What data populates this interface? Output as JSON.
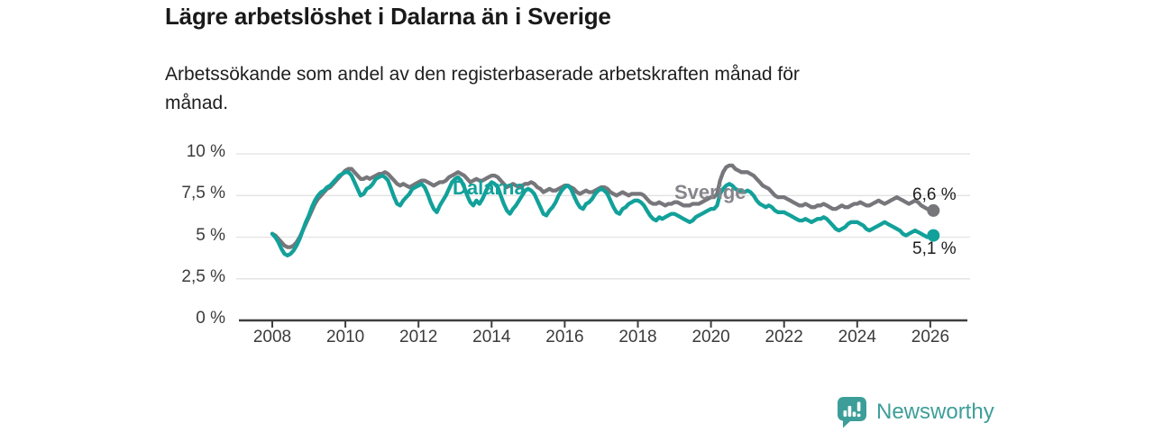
{
  "chart_data": {
    "type": "line",
    "title": "Lägre arbetslöshet i Dalarna än i Sverige",
    "subtitle_lines": [
      "Arbetssökande som andel av den registerbaserade arbetskraften månad för",
      "månad."
    ],
    "grid": true,
    "legend": "inline-labels",
    "x": {
      "start_year": 2008,
      "points_per_year": 12,
      "end_period": "2026-02",
      "ticks": [
        2008,
        2010,
        2012,
        2014,
        2016,
        2018,
        2020,
        2022,
        2024,
        2026
      ],
      "tick_labels": [
        "2008",
        "2010",
        "2012",
        "2014",
        "2016",
        "2018",
        "2020",
        "2022",
        "2024",
        "2026"
      ]
    },
    "y": {
      "ylim": [
        0,
        10
      ],
      "unit": "%",
      "tick_values": [
        0,
        2.5,
        5,
        7.5,
        10
      ],
      "tick_labels": [
        "0 %",
        "2,5 %",
        "5 %",
        "7,5 %",
        "10 %"
      ]
    },
    "series": [
      {
        "name": "Sverige",
        "color": "#76767B",
        "label_color": "#85858B",
        "end_label": "6,6 %",
        "end_value": 6.6,
        "values": [
          5.2,
          5.1,
          4.9,
          4.7,
          4.5,
          4.4,
          4.4,
          4.5,
          4.7,
          5.0,
          5.4,
          5.8,
          6.2,
          6.6,
          7.0,
          7.3,
          7.5,
          7.7,
          7.9,
          8.0,
          8.2,
          8.4,
          8.6,
          8.8,
          9.0,
          9.1,
          9.1,
          8.9,
          8.7,
          8.5,
          8.5,
          8.6,
          8.5,
          8.6,
          8.7,
          8.8,
          8.8,
          8.9,
          8.8,
          8.6,
          8.4,
          8.2,
          8.1,
          8.2,
          8.1,
          8.0,
          8.1,
          8.2,
          8.3,
          8.4,
          8.4,
          8.3,
          8.2,
          8.1,
          8.2,
          8.3,
          8.3,
          8.4,
          8.6,
          8.7,
          8.8,
          8.9,
          8.8,
          8.7,
          8.5,
          8.3,
          8.4,
          8.5,
          8.4,
          8.4,
          8.5,
          8.6,
          8.7,
          8.7,
          8.6,
          8.4,
          8.2,
          8.0,
          8.1,
          8.2,
          8.1,
          8.0,
          8.1,
          8.2,
          8.2,
          8.3,
          8.2,
          8.0,
          7.9,
          7.7,
          7.8,
          7.9,
          7.8,
          7.8,
          7.9,
          8.0,
          8.1,
          8.1,
          8.0,
          7.9,
          7.7,
          7.6,
          7.7,
          7.8,
          7.7,
          7.7,
          7.8,
          7.9,
          8.0,
          8.0,
          7.9,
          7.7,
          7.6,
          7.5,
          7.6,
          7.7,
          7.6,
          7.5,
          7.6,
          7.6,
          7.6,
          7.6,
          7.5,
          7.3,
          7.1,
          7.0,
          7.0,
          7.1,
          7.0,
          6.9,
          7.0,
          7.0,
          7.1,
          7.1,
          7.0,
          6.9,
          6.9,
          6.9,
          7.0,
          7.0,
          7.0,
          7.1,
          7.2,
          7.3,
          7.4,
          7.4,
          7.6,
          8.4,
          8.9,
          9.2,
          9.3,
          9.3,
          9.1,
          9.0,
          8.9,
          8.9,
          8.9,
          8.8,
          8.7,
          8.5,
          8.3,
          8.1,
          8.0,
          7.9,
          7.7,
          7.5,
          7.4,
          7.4,
          7.4,
          7.3,
          7.2,
          7.1,
          7.0,
          6.9,
          6.9,
          7.0,
          6.9,
          6.8,
          6.8,
          6.9,
          6.9,
          7.0,
          6.9,
          6.8,
          6.7,
          6.7,
          6.8,
          6.9,
          6.8,
          6.8,
          6.9,
          7.0,
          7.0,
          7.1,
          7.0,
          6.9,
          6.9,
          7.0,
          7.1,
          7.2,
          7.1,
          7.0,
          7.1,
          7.2,
          7.3,
          7.4,
          7.3,
          7.2,
          7.1,
          7.0,
          7.1,
          7.2,
          7.1,
          6.9,
          6.8,
          6.7,
          6.6,
          6.6
        ]
      },
      {
        "name": "Dalarna",
        "color": "#12A19A",
        "label_color": "#12A19A",
        "end_label": "5,1 %",
        "end_value": 5.1,
        "values": [
          5.2,
          5.0,
          4.7,
          4.3,
          4.0,
          3.9,
          4.0,
          4.2,
          4.5,
          4.9,
          5.4,
          5.9,
          6.3,
          6.8,
          7.2,
          7.5,
          7.7,
          7.8,
          8.0,
          8.1,
          8.3,
          8.5,
          8.7,
          8.8,
          8.9,
          8.9,
          8.7,
          8.3,
          7.9,
          7.5,
          7.6,
          7.9,
          8.0,
          8.2,
          8.5,
          8.6,
          8.7,
          8.6,
          8.4,
          7.9,
          7.4,
          7.0,
          6.9,
          7.2,
          7.4,
          7.6,
          7.9,
          8.0,
          8.1,
          8.2,
          8.0,
          7.6,
          7.1,
          6.7,
          6.5,
          6.9,
          7.2,
          7.5,
          7.9,
          8.3,
          8.5,
          8.6,
          8.4,
          8.0,
          7.5,
          7.1,
          6.9,
          7.2,
          7.0,
          7.3,
          7.7,
          8.1,
          8.3,
          8.2,
          8.0,
          7.5,
          7.0,
          6.6,
          6.4,
          6.7,
          6.9,
          7.2,
          7.5,
          7.8,
          7.9,
          7.8,
          7.6,
          7.2,
          6.8,
          6.4,
          6.3,
          6.6,
          6.8,
          7.1,
          7.5,
          7.8,
          8.0,
          8.1,
          7.9,
          7.5,
          7.1,
          6.8,
          6.7,
          7.0,
          7.1,
          7.3,
          7.6,
          7.8,
          7.9,
          7.8,
          7.6,
          7.2,
          6.8,
          6.5,
          6.4,
          6.7,
          6.8,
          7.0,
          7.1,
          7.2,
          7.2,
          7.1,
          6.9,
          6.6,
          6.3,
          6.1,
          6.0,
          6.2,
          6.1,
          6.2,
          6.3,
          6.4,
          6.4,
          6.3,
          6.2,
          6.1,
          6.0,
          5.9,
          6.0,
          6.2,
          6.3,
          6.4,
          6.5,
          6.6,
          6.7,
          6.7,
          6.9,
          7.6,
          7.9,
          8.1,
          8.2,
          8.1,
          7.9,
          7.8,
          7.7,
          7.7,
          7.8,
          7.7,
          7.5,
          7.2,
          7.0,
          6.9,
          6.8,
          6.9,
          6.8,
          6.6,
          6.5,
          6.5,
          6.5,
          6.4,
          6.3,
          6.2,
          6.1,
          6.0,
          6.0,
          6.1,
          6.0,
          5.9,
          6.0,
          6.1,
          6.1,
          6.2,
          6.1,
          5.9,
          5.7,
          5.5,
          5.4,
          5.5,
          5.6,
          5.8,
          5.9,
          5.9,
          5.9,
          5.8,
          5.7,
          5.5,
          5.4,
          5.5,
          5.6,
          5.7,
          5.8,
          5.9,
          5.8,
          5.7,
          5.6,
          5.5,
          5.4,
          5.2,
          5.1,
          5.2,
          5.3,
          5.4,
          5.3,
          5.2,
          5.1,
          5.0,
          5.1,
          5.1
        ]
      }
    ]
  },
  "footer": {
    "brand_name": "Newsworthy",
    "brand_color": "#3D9E99",
    "icon": "newsworthy-bar-chart-speech-bubble-icon"
  }
}
